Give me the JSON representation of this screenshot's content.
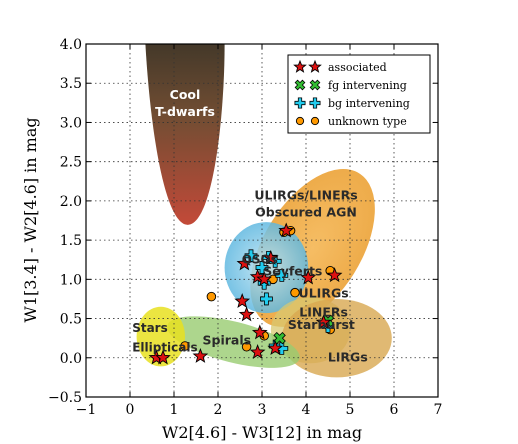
{
  "chart_data": {
    "type": "scatter",
    "xlabel": "W2[4.6] - W3[12] in mag",
    "ylabel": "W1[3.4] - W2[4.6] in mag",
    "xlim": [
      -1,
      7
    ],
    "ylim": [
      -0.5,
      4.0
    ],
    "xticks": [
      "−1",
      "0",
      "1",
      "2",
      "3",
      "4",
      "5",
      "6",
      "7"
    ],
    "yticks": [
      "−0.5",
      "0.0",
      "0.5",
      "1.0",
      "1.5",
      "2.0",
      "2.5",
      "3.0",
      "3.5",
      "4.0"
    ],
    "grid": true,
    "legend_position": "top-right",
    "regions": [
      {
        "label": "Cool T-dwarfs",
        "color": "#5a3a1e"
      },
      {
        "label": "ULIRGs/LINERs Obscured AGN",
        "color": "#e8941a"
      },
      {
        "label": "QSOs",
        "color": "#2a9fd6"
      },
      {
        "label": "Seyferts",
        "color": "#2a9fd6"
      },
      {
        "label": "ULIRGs LINERs",
        "color": "#e8941a"
      },
      {
        "label": "Starburst",
        "color": "#c0b040"
      },
      {
        "label": "LIRGs",
        "color": "#d8a850"
      },
      {
        "label": "Spirals",
        "color": "#8ac860"
      },
      {
        "label": "Stars",
        "color": "#e8e020"
      },
      {
        "label": "Ellipticals",
        "color": "#e8e020"
      }
    ],
    "series": [
      {
        "name": "associated",
        "marker": "star",
        "color": "#dd1111",
        "points": [
          [
            0.6,
            0.0
          ],
          [
            0.75,
            0.0
          ],
          [
            1.6,
            0.02
          ],
          [
            2.55,
            0.72
          ],
          [
            2.65,
            0.55
          ],
          [
            2.6,
            1.2
          ],
          [
            2.9,
            1.03
          ],
          [
            2.95,
            0.32
          ],
          [
            2.9,
            0.07
          ],
          [
            3.05,
            1.0
          ],
          [
            3.2,
            1.27
          ],
          [
            3.3,
            0.12
          ],
          [
            3.55,
            1.62
          ],
          [
            4.05,
            1.02
          ],
          [
            4.4,
            0.45
          ],
          [
            4.65,
            1.05
          ]
        ]
      },
      {
        "name": "fg intervening",
        "marker": "x",
        "color": "#33bb33",
        "points": [
          [
            3.4,
            0.25
          ],
          [
            4.5,
            0.47
          ]
        ]
      },
      {
        "name": "bg intervening",
        "marker": "plus",
        "color": "#22ccee",
        "points": [
          [
            2.75,
            1.3
          ],
          [
            3.0,
            1.15
          ],
          [
            3.05,
            0.95
          ],
          [
            3.1,
            0.75
          ],
          [
            3.15,
            1.28
          ],
          [
            3.3,
            1.23
          ],
          [
            3.45,
            1.05
          ],
          [
            3.3,
            0.15
          ],
          [
            3.45,
            0.12
          ],
          [
            4.5,
            0.4
          ]
        ]
      },
      {
        "name": "unknown type",
        "marker": "circle",
        "color": "#ff9900",
        "points": [
          [
            1.25,
            0.15
          ],
          [
            1.85,
            0.78
          ],
          [
            2.65,
            0.14
          ],
          [
            3.05,
            0.28
          ],
          [
            3.25,
            1.0
          ],
          [
            3.5,
            1.6
          ],
          [
            3.65,
            1.62
          ],
          [
            3.75,
            0.83
          ],
          [
            4.55,
            0.36
          ],
          [
            4.55,
            1.11
          ]
        ]
      }
    ]
  }
}
